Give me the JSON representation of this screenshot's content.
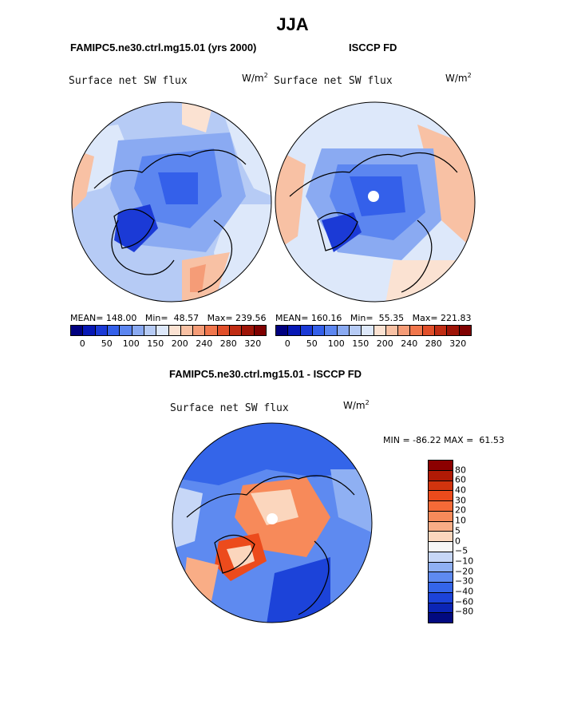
{
  "page": {
    "title": "JJA"
  },
  "panel_left": {
    "heading": "FAMIPC5.ne30.ctrl.mg15.01 (yrs 2000)",
    "label": "Surface net SW flux",
    "unit_base": "W/m",
    "unit_exp": "2",
    "stats": "MEAN= 148.00   Min=  48.57   Max= 239.56"
  },
  "panel_right": {
    "heading": "ISCCP FD",
    "label": "Surface net SW flux",
    "unit_base": "W/m",
    "unit_exp": "2",
    "stats": "MEAN= 160.16   Min=  55.35   Max= 221.83"
  },
  "panel_diff": {
    "heading": "FAMIPC5.ne30.ctrl.mg15.01 - ISCCP FD",
    "label": "Surface net SW flux",
    "unit_base": "W/m",
    "unit_exp": "2",
    "minmax": "MIN = -86.22 MAX =  61.53"
  },
  "colorbar_abs": {
    "ticks": [
      "0",
      "50",
      "100",
      "150",
      "200",
      "240",
      "280",
      "320"
    ],
    "colors": [
      "#00007f",
      "#0718b5",
      "#1b3ad6",
      "#3460ea",
      "#5c86f0",
      "#8aaaf2",
      "#b6cbf5",
      "#dde8fa",
      "#fbe2d2",
      "#f8c1a4",
      "#f59c77",
      "#f0764c",
      "#e14f2a",
      "#c02c13",
      "#9e1407",
      "#7f0000"
    ]
  },
  "colorbar_diff": {
    "ticks": [
      "80",
      "60",
      "40",
      "30",
      "20",
      "10",
      "5",
      "0",
      "−5",
      "−10",
      "−20",
      "−30",
      "−40",
      "−60",
      "−80"
    ],
    "colors": [
      "#8b0000",
      "#b11a05",
      "#d2340e",
      "#ec4b1c",
      "#f56a37",
      "#f78a5a",
      "#f9ad86",
      "#fbd6bd",
      "#f6f6f6",
      "#c7d7f7",
      "#8fb0f3",
      "#5e8af0",
      "#3465e9",
      "#1c43d9",
      "#0b25b5",
      "#020a80"
    ]
  }
}
